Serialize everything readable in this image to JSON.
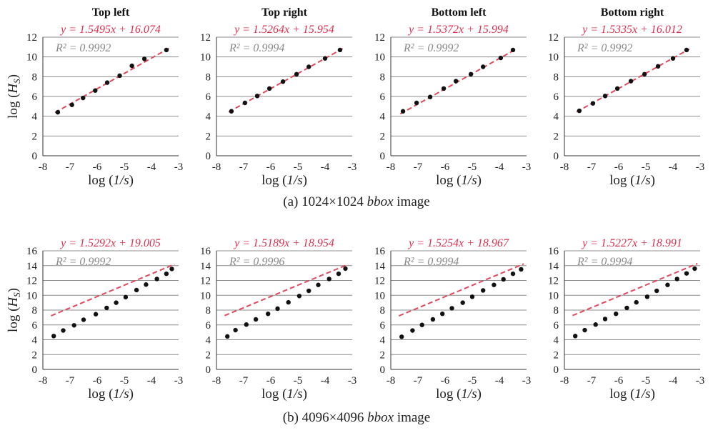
{
  "captions": [
    {
      "label": "(a) 1024×1024",
      "em": "bbox",
      "tail": " image"
    },
    {
      "label": "(b) 4096×4096",
      "em": "bbox",
      "tail": " image"
    }
  ],
  "colors": {
    "fit": "#e04a5e",
    "eq": "#d9304f",
    "r2": "#8a8a8a",
    "point": "#111111",
    "grid": "#8c8c8c",
    "axis": "#333333"
  },
  "chart_data": [
    {
      "type": "scatter",
      "title": "Top left",
      "equation": "y = 1.5495x + 16.074",
      "r2": "R² = 0.9992",
      "xlabel": "log (1/s)",
      "ylabel": "log (HS)",
      "xlim": [
        -8,
        -3
      ],
      "ylim": [
        0,
        12
      ],
      "xticks": [
        "-8",
        "-7",
        "-6",
        "-5",
        "-4",
        "-3"
      ],
      "yticks": [
        "0",
        "2",
        "4",
        "6",
        "8",
        "10",
        "12"
      ],
      "slope": 1.5495,
      "intercept": 16.074,
      "x": [
        -7.45,
        -6.93,
        -6.52,
        -6.07,
        -5.63,
        -5.17,
        -4.72,
        -4.26,
        -3.45
      ],
      "y": [
        4.4,
        5.15,
        5.85,
        6.6,
        7.4,
        8.1,
        9.1,
        9.8,
        10.7
      ]
    },
    {
      "type": "scatter",
      "title": "Top right",
      "equation": "y = 1.5264x + 15.954",
      "r2": "R² = 0.9994",
      "xlabel": "log (1/s)",
      "ylabel": "",
      "xlim": [
        -8,
        -3
      ],
      "ylim": [
        0,
        12
      ],
      "xticks": [
        "-8",
        "-7",
        "-6",
        "-5",
        "-4",
        "-3"
      ],
      "yticks": [
        "0",
        "2",
        "4",
        "6",
        "8",
        "10",
        "12"
      ],
      "slope": 1.5264,
      "intercept": 15.954,
      "x": [
        -7.45,
        -6.95,
        -6.5,
        -6.05,
        -5.55,
        -5.05,
        -4.6,
        -4.0,
        -3.45
      ],
      "y": [
        4.5,
        5.35,
        6.05,
        6.8,
        7.5,
        8.25,
        9.0,
        9.85,
        10.7
      ]
    },
    {
      "type": "scatter",
      "title": "Bottom left",
      "equation": "y = 1.5372x + 15.994",
      "r2": "R² = 0.9992",
      "xlabel": "log (1/s)",
      "ylabel": "",
      "xlim": [
        -8,
        -3
      ],
      "ylim": [
        0,
        12
      ],
      "xticks": [
        "-8",
        "-7",
        "-6",
        "-5",
        "-4",
        "-3"
      ],
      "yticks": [
        "0",
        "2",
        "4",
        "6",
        "8",
        "10",
        "12"
      ],
      "slope": 1.5372,
      "intercept": 15.994,
      "x": [
        -7.55,
        -7.05,
        -6.55,
        -6.05,
        -5.6,
        -5.05,
        -4.6,
        -3.95,
        -3.5
      ],
      "y": [
        4.5,
        5.35,
        5.95,
        6.8,
        7.55,
        8.25,
        9.0,
        9.9,
        10.7
      ]
    },
    {
      "type": "scatter",
      "title": "Bottom right",
      "equation": "y = 1.5335x + 16.012",
      "r2": "R² = 0.9992",
      "xlabel": "log (1/s)",
      "ylabel": "",
      "xlim": [
        -8,
        -3
      ],
      "ylim": [
        0,
        12
      ],
      "xticks": [
        "-8",
        "-7",
        "-6",
        "-5",
        "-4",
        "-3"
      ],
      "yticks": [
        "0",
        "2",
        "4",
        "6",
        "8",
        "10",
        "12"
      ],
      "slope": 1.5335,
      "intercept": 16.012,
      "x": [
        -7.45,
        -6.95,
        -6.5,
        -6.05,
        -5.55,
        -5.05,
        -4.55,
        -4.0,
        -3.5
      ],
      "y": [
        4.55,
        5.3,
        6.05,
        6.8,
        7.55,
        8.25,
        9.05,
        9.85,
        10.7
      ]
    },
    {
      "type": "scatter",
      "title": "",
      "equation": "y = 1.5292x + 19.005",
      "r2": "R² = 0.9992",
      "xlabel": "log (1/s)",
      "ylabel": "log (HS)",
      "xlim": [
        -8,
        -3
      ],
      "ylim": [
        0,
        16
      ],
      "xticks": [
        "-8",
        "-7",
        "-6",
        "-5",
        "-4",
        "-3"
      ],
      "yticks": [
        "0",
        "2",
        "4",
        "6",
        "8",
        "10",
        "12",
        "14",
        "16"
      ],
      "slope": 1.5292,
      "intercept": 19.005,
      "x": [
        -7.6,
        -7.25,
        -6.85,
        -6.5,
        -6.05,
        -5.65,
        -5.3,
        -4.95,
        -4.55,
        -4.2,
        -3.8,
        -3.45,
        -3.25
      ],
      "y": [
        4.5,
        5.25,
        5.95,
        6.7,
        7.45,
        8.3,
        9.0,
        9.75,
        10.7,
        11.45,
        12.2,
        12.9,
        13.55
      ]
    },
    {
      "type": "scatter",
      "title": "",
      "equation": "y = 1.5189x + 18.954",
      "r2": "R² = 0.9996",
      "xlabel": "log (1/s)",
      "ylabel": "",
      "xlim": [
        -8,
        -3
      ],
      "ylim": [
        0,
        16
      ],
      "xticks": [
        "-8",
        "-7",
        "-6",
        "-5",
        "-4",
        "-3"
      ],
      "yticks": [
        "0",
        "2",
        "4",
        "6",
        "8",
        "10",
        "12",
        "14",
        "16"
      ],
      "slope": 1.5189,
      "intercept": 18.954,
      "x": [
        -7.6,
        -7.3,
        -6.9,
        -6.55,
        -6.1,
        -5.75,
        -5.35,
        -4.95,
        -4.6,
        -4.25,
        -3.85,
        -3.5,
        -3.25
      ],
      "y": [
        4.45,
        5.3,
        6.05,
        6.75,
        7.5,
        8.2,
        9.05,
        9.9,
        10.6,
        11.4,
        12.2,
        12.9,
        13.6
      ]
    },
    {
      "type": "scatter",
      "title": "",
      "equation": "y = 1.5254x + 18.967",
      "r2": "R² = 0.9994",
      "xlabel": "log (1/s)",
      "ylabel": "",
      "xlim": [
        -8,
        -3
      ],
      "ylim": [
        0,
        16
      ],
      "xticks": [
        "-8",
        "-7",
        "-6",
        "-5",
        "-4",
        "-3"
      ],
      "yticks": [
        "0",
        "2",
        "4",
        "6",
        "8",
        "10",
        "12",
        "14",
        "16"
      ],
      "slope": 1.5254,
      "intercept": 18.967,
      "x": [
        -7.6,
        -7.2,
        -6.85,
        -6.45,
        -6.1,
        -5.75,
        -5.35,
        -5.0,
        -4.6,
        -4.2,
        -3.85,
        -3.5,
        -3.2
      ],
      "y": [
        4.4,
        5.25,
        6.0,
        6.75,
        7.5,
        8.25,
        9.0,
        9.8,
        10.65,
        11.4,
        12.15,
        12.9,
        13.5
      ]
    },
    {
      "type": "scatter",
      "title": "",
      "equation": "y = 1.5227x + 18.991",
      "r2": "R² = 0.9994",
      "xlabel": "log (1/s)",
      "ylabel": "",
      "xlim": [
        -8,
        -3
      ],
      "ylim": [
        0,
        16
      ],
      "xticks": [
        "-8",
        "-7",
        "-6",
        "-5",
        "-4",
        "-3"
      ],
      "yticks": [
        "0",
        "2",
        "4",
        "6",
        "8",
        "10",
        "12",
        "14",
        "16"
      ],
      "slope": 1.5227,
      "intercept": 18.991,
      "x": [
        -7.6,
        -7.25,
        -6.85,
        -6.5,
        -6.1,
        -5.7,
        -5.35,
        -4.95,
        -4.6,
        -4.2,
        -3.85,
        -3.5,
        -3.2
      ],
      "y": [
        4.5,
        5.3,
        6.05,
        6.8,
        7.5,
        8.3,
        9.05,
        9.8,
        10.6,
        11.4,
        12.2,
        12.95,
        13.6
      ]
    }
  ]
}
